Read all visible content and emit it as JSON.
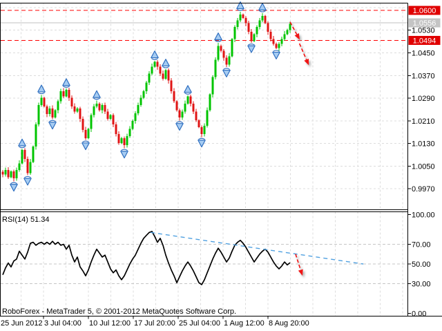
{
  "colors": {
    "background": "#FFFFFF",
    "bull": "#00C400",
    "bear": "#E01414",
    "wick_bull": "#00C400",
    "wick_bear": "#E01414",
    "grid": "#DCDCDC",
    "border": "#000000",
    "resistance_red": "#FF0000",
    "current_price_line": "#C0C0C0",
    "box_red_bg": "#E00000",
    "box_gray_bg": "#C4C4C4",
    "box_text": "#FFFFFF",
    "axis_text": "#000000",
    "fractal_fill": "#A6CCF2",
    "fractal_stroke": "#2F6FC0",
    "rsi_line": "#000000",
    "rsi_grid": "#C4C4C4",
    "trend_blue": "#4FA0E0",
    "annotation_red": "#F01414"
  },
  "price_axis": {
    "plain_ticks": [
      "1.0530",
      "1.0450",
      "1.0370",
      "1.0290",
      "1.0210",
      "1.0130",
      "1.0050",
      "0.9970"
    ],
    "boxes": [
      {
        "label": "1.0600",
        "value": 1.06,
        "kind": "resistance"
      },
      {
        "label": "1.0556",
        "value": 1.0556,
        "kind": "current-price"
      },
      {
        "label": "1.0494",
        "value": 1.0494,
        "kind": "resistance"
      }
    ]
  },
  "rsi_axis": {
    "labels": [
      "100.00",
      "70.00",
      "50.00",
      "30.00",
      "0.00"
    ]
  },
  "time_axis": {
    "labels": [
      "25 Jun 2012",
      "3 Jul 04:00",
      "10 Jul 12:00",
      "17 Jul 20:00",
      "25 Jul 04:00",
      "1 Aug 12:00",
      "8 Aug 20:00"
    ]
  },
  "rsi": {
    "label": "RSI(14) 51.34"
  },
  "footer": {
    "copyright": "RoboForex - MetaTrader 5, © 2001-2012 MetaQuotes Software Corp."
  },
  "chart_data": [
    {
      "type": "candlestick",
      "timeframe_note": "H4 forex chart, no symbol title visible",
      "ylim": [
        0.9894,
        1.0626
      ],
      "y_ticks": [
        1.053,
        1.045,
        1.037,
        1.029,
        1.021,
        1.013,
        1.005,
        0.997
      ],
      "grid": true,
      "first_open": 1.003,
      "closes": [
        1.0021,
        1.0036,
        1.0011,
        1.0031,
        1.0007,
        1.0036,
        1.006,
        1.0107,
        1.0075,
        1.0026,
        1.0065,
        1.0119,
        1.0198,
        1.0266,
        1.0291,
        1.0261,
        1.0234,
        1.0254,
        1.0222,
        1.0247,
        1.0279,
        1.0315,
        1.0296,
        1.032,
        1.0291,
        1.0261,
        1.0242,
        1.0254,
        1.0217,
        1.0178,
        1.0149,
        1.0181,
        1.023,
        1.0261,
        1.0271,
        1.0247,
        1.0266,
        1.0242,
        1.0217,
        1.023,
        1.0198,
        1.0163,
        1.0132,
        1.0149,
        1.0124,
        1.0156,
        1.0181,
        1.021,
        1.0237,
        1.0266,
        1.0291,
        1.0315,
        1.0345,
        1.0377,
        1.0401,
        1.0418,
        1.0401,
        1.0377,
        1.0359,
        1.0389,
        1.0352,
        1.0315,
        1.0279,
        1.0247,
        1.0222,
        1.0242,
        1.0271,
        1.0296,
        1.0271,
        1.0242,
        1.0212,
        1.0188,
        1.0163,
        1.0193,
        1.0247,
        1.0303,
        1.0364,
        1.0426,
        1.0475,
        1.0457,
        1.0433,
        1.0408,
        1.0438,
        1.0499,
        1.0541,
        1.0565,
        1.0585,
        1.0573,
        1.0555,
        1.0524,
        1.0492,
        1.0516,
        1.0541,
        1.0565,
        1.058,
        1.0555,
        1.0524,
        1.0499,
        1.0482,
        1.0467,
        1.0482,
        1.0499,
        1.0516,
        1.0531,
        1.0553
      ],
      "indicators": {
        "fractals": {
          "window": 5,
          "note": "blue up arrows above local highs, down arrows below local lows"
        }
      },
      "annotations": {
        "resistance_levels": [
          1.06,
          1.0494
        ],
        "current_price": 1.0556,
        "arrows": [
          {
            "from_bar": 104.0,
            "from_price": 1.0559,
            "to_bar": 107.5,
            "to_price": 1.0496
          },
          {
            "from_bar": 107.4,
            "from_price": 1.0483,
            "to_bar": 110.8,
            "to_price": 1.0406
          }
        ]
      }
    },
    {
      "type": "line",
      "name": "RSI(14)",
      "current_value": 51.34,
      "ylim": [
        0,
        100
      ],
      "levels": [
        100,
        70,
        50,
        30,
        0
      ],
      "dashed_levels": [
        70,
        50,
        30
      ],
      "values": [
        39,
        46,
        51,
        47,
        53,
        55,
        63,
        59,
        55,
        62,
        71,
        72,
        69,
        71,
        72,
        70,
        72,
        70,
        73,
        70,
        72,
        69,
        70,
        65,
        69,
        59,
        52,
        57,
        47,
        43,
        38,
        44,
        52,
        59,
        65,
        61,
        57,
        59,
        52,
        45,
        41,
        44,
        38,
        34,
        38,
        44,
        50,
        55,
        59,
        65,
        71,
        76,
        79,
        82,
        83,
        78,
        72,
        76,
        69,
        59,
        51,
        44,
        38,
        31,
        37,
        43,
        48,
        52,
        48,
        43,
        37,
        31,
        29,
        34,
        41,
        48,
        55,
        61,
        66,
        62,
        57,
        52,
        56,
        63,
        69,
        72,
        74,
        71,
        67,
        62,
        57,
        52,
        56,
        60,
        63,
        65,
        62,
        57,
        52,
        48,
        45,
        48,
        52,
        49,
        51.34
      ],
      "annotations": {
        "trendline": {
          "from_bar": 53.5,
          "from_value": 82,
          "to_bar": 130.5,
          "to_value": 50
        },
        "arrow": {
          "from_bar": 106.0,
          "from_value": 60,
          "to_bar": 108.5,
          "to_value": 38
        }
      }
    }
  ]
}
